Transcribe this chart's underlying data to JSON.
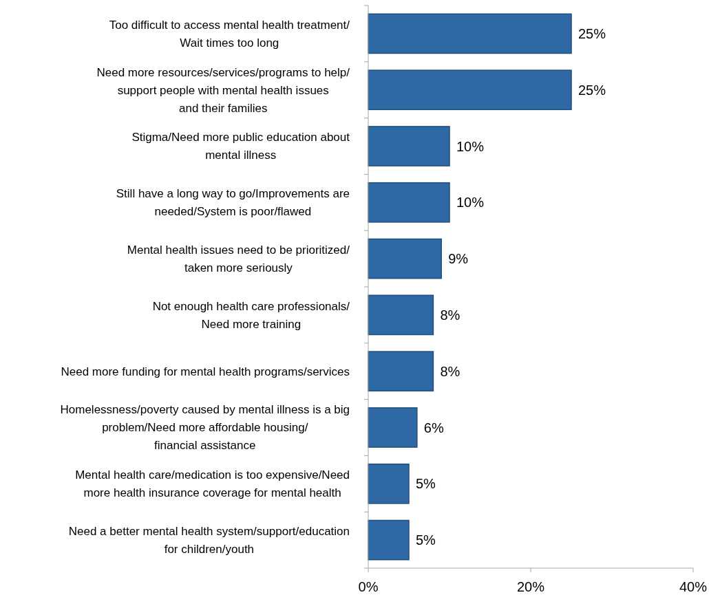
{
  "chart_data": {
    "type": "bar",
    "orientation": "horizontal",
    "categories": [
      "Too difficult to access mental health treatment/\nWait times too long",
      "Need more resources/services/programs to help/\nsupport people with mental health issues\nand their families",
      "Stigma/Need more public education about\nmental illness",
      "Still have a long way to go/Improvements are\nneeded/System is poor/flawed",
      "Mental health issues need to be prioritized/\ntaken more seriously",
      "Not enough health care professionals/\nNeed more training",
      "Need more funding for mental health programs/services",
      "Homelessness/poverty caused by mental illness is a big\nproblem/Need more affordable housing/\nfinancial assistance",
      "Mental health care/medication is too expensive/Need\nmore health insurance coverage for mental health",
      "Need a better mental health system/support/education\nfor children/youth"
    ],
    "values": [
      25,
      25,
      10,
      10,
      9,
      8,
      8,
      6,
      5,
      5
    ],
    "value_labels": [
      "25%",
      "25%",
      "10%",
      "10%",
      "9%",
      "8%",
      "8%",
      "6%",
      "5%",
      "5%"
    ],
    "color": "#2e69a5",
    "xlim": [
      0,
      40
    ],
    "xticks": [
      {
        "value": 0,
        "label": "0%"
      },
      {
        "value": 20,
        "label": "20%"
      },
      {
        "value": 40,
        "label": "40%"
      }
    ]
  }
}
